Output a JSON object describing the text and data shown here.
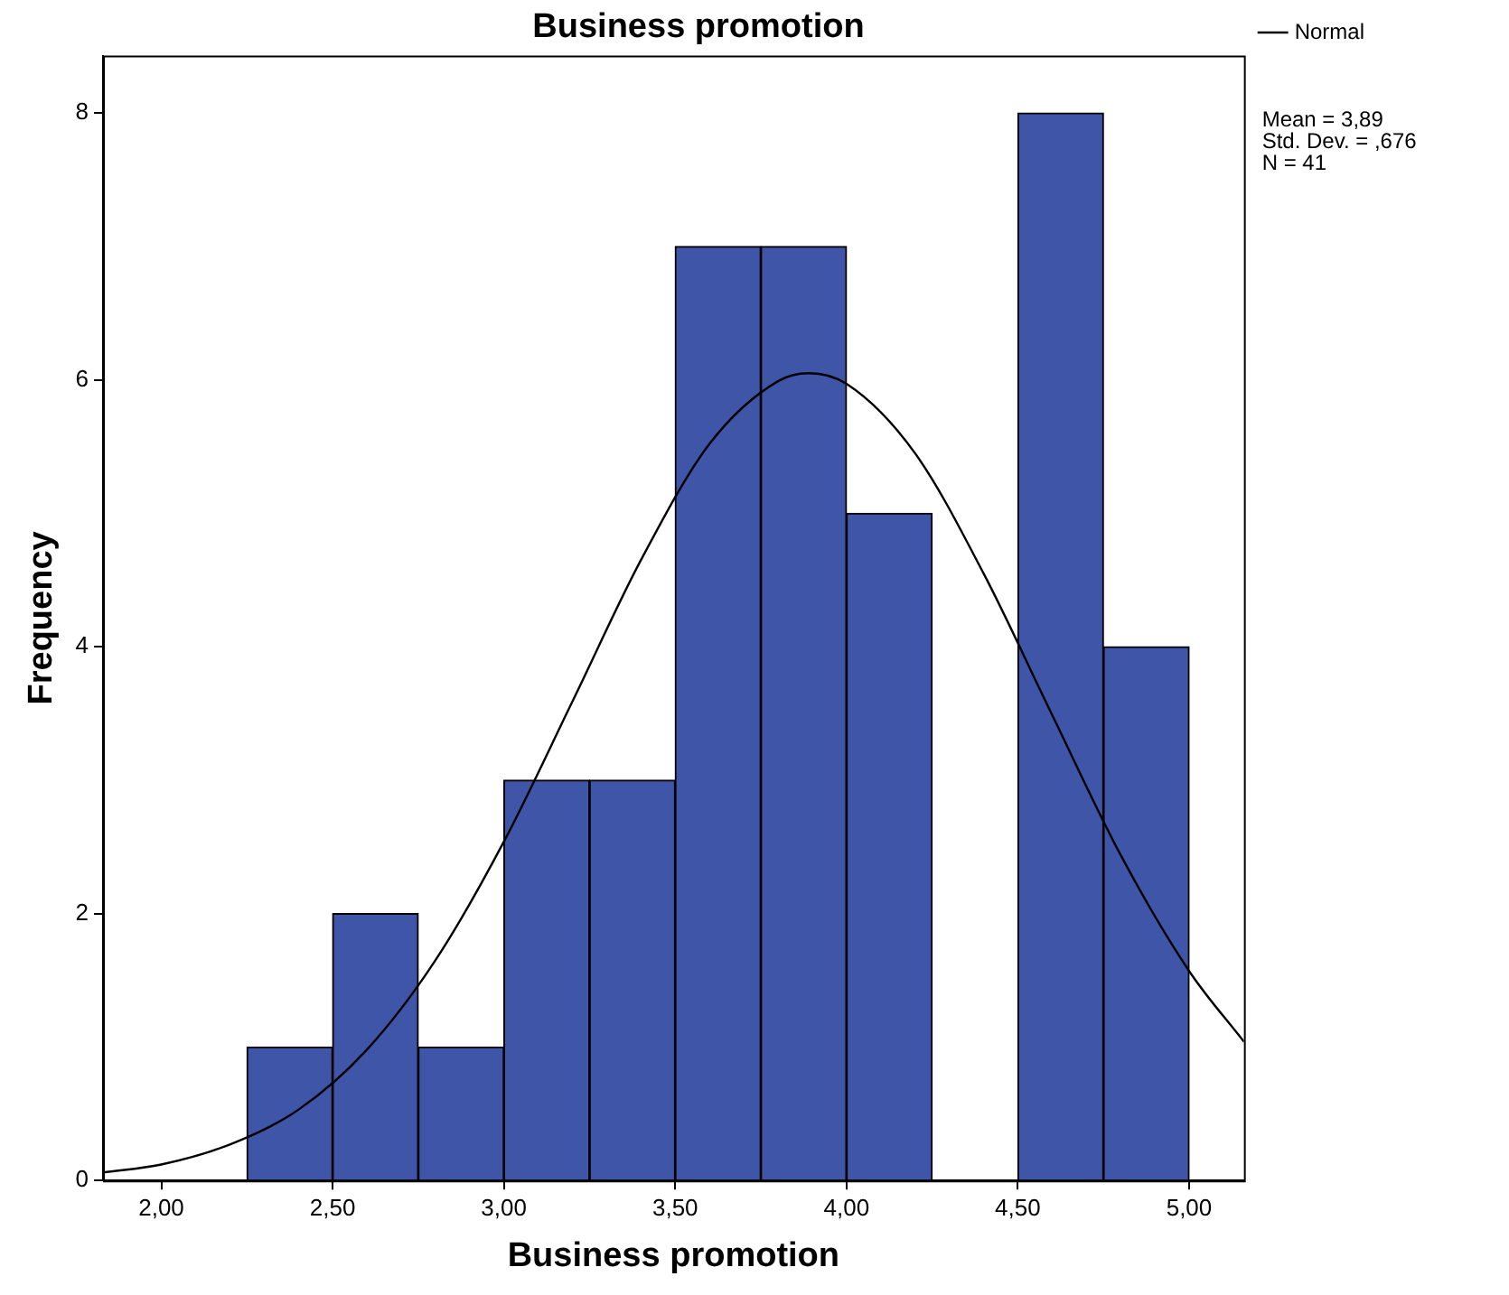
{
  "chart_data": {
    "type": "histogram",
    "title": "Business promotion",
    "xlabel": "Business promotion",
    "ylabel": "Frequency",
    "bins": [
      2.25,
      2.5,
      2.75,
      3.0,
      3.25,
      3.5,
      3.75,
      4.0,
      4.25,
      4.5,
      4.75,
      5.0
    ],
    "values": [
      1,
      2,
      1,
      3,
      3,
      7,
      7,
      5,
      0,
      8,
      4
    ],
    "color": "#3f55a8",
    "series": [
      {
        "type": "line",
        "name": "Normal",
        "color": "#000000",
        "x": [
          1.83,
          2.0,
          2.2,
          2.4,
          2.6,
          2.8,
          3.0,
          3.2,
          3.4,
          3.6,
          3.8,
          3.89,
          4.0,
          4.2,
          4.4,
          4.6,
          4.8,
          5.0,
          5.16
        ],
        "values": [
          0.06,
          0.12,
          0.27,
          0.53,
          0.98,
          1.65,
          2.54,
          3.59,
          4.65,
          5.52,
          5.99,
          6.05,
          5.97,
          5.45,
          4.55,
          3.49,
          2.44,
          1.57,
          1.04
        ]
      }
    ],
    "xlim": [
      1.83,
      5.16
    ],
    "xticks": [
      {
        "value": 2,
        "label": "2,00"
      },
      {
        "value": 2.5,
        "label": "2,50"
      },
      {
        "value": 3,
        "label": "3,00"
      },
      {
        "value": 3.5,
        "label": "3,50"
      },
      {
        "value": 4,
        "label": "4,00"
      },
      {
        "value": 4.5,
        "label": "4,50"
      },
      {
        "value": 5,
        "label": "5,00"
      }
    ],
    "ylim": [
      0,
      8.43
    ],
    "yticks": [
      0,
      2,
      4,
      6,
      8
    ],
    "grid": false,
    "legend": "top right",
    "marker": "none",
    "line_style": "solid",
    "annotations": [
      "Mean = 3,89",
      "Std. Dev. = ,676",
      "N = 41"
    ]
  }
}
